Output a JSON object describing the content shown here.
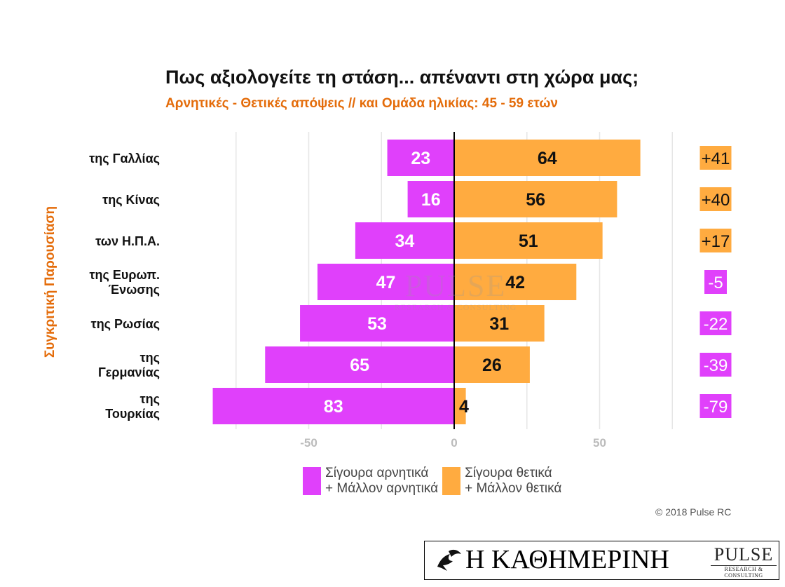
{
  "chart_data": {
    "type": "bar",
    "orientation": "horizontal-diverging",
    "title": "Πως αξιολογείτε τη στάση... απέναντι στη χώρα μας;",
    "subtitle": "Αρνητικές - Θετικές απόψεις // και Ομάδα ηλικίας: 45 - 59 ετών",
    "ylabel": "Συγκριτική Παρουσίαση",
    "categories": [
      [
        "της Γαλλίας"
      ],
      [
        "της Κίνας"
      ],
      [
        "των Η.Π.Α."
      ],
      [
        "της Ευρωπ.",
        "Ένωσης"
      ],
      [
        "της Ρωσίας"
      ],
      [
        "της",
        "Γερμανίας"
      ],
      [
        "της",
        "Τουρκίας"
      ]
    ],
    "series": [
      {
        "name": "Σίγουρα αρνητικά + Μάλλον αρνητικά",
        "color": "#e040fb",
        "values": [
          23,
          16,
          34,
          47,
          53,
          65,
          83
        ]
      },
      {
        "name": "Σίγουρα θετικά + Μάλλον θετικά",
        "color": "#ffab40",
        "values": [
          64,
          56,
          51,
          42,
          31,
          26,
          4
        ]
      }
    ],
    "net": [
      "+41",
      "+40",
      "+17",
      "-5",
      "-22",
      "-39",
      "-79"
    ],
    "xlim": [
      -83,
      75
    ],
    "xticks": [
      "-50",
      "0",
      "50"
    ],
    "xtick_values": [
      -50,
      0,
      50
    ],
    "grid": true,
    "legend_position": "bottom"
  },
  "legend": {
    "items": [
      {
        "line1": "Σίγουρα αρνητικά",
        "line2": "+ Μάλλον αρνητικά",
        "color": "#e040fb"
      },
      {
        "line1": "Σίγουρα θετικά",
        "line2": "+ Μάλλον θετικά",
        "color": "#ffab40"
      }
    ]
  },
  "watermark": {
    "main": "PULSE",
    "sub": "RESEARCH & CONSULTING"
  },
  "copyright": "© 2018 Pulse RC",
  "footer": {
    "logo": "Η ΚΑΘΗΜΕΡΙΝΗ",
    "pulse_main": "PULSE",
    "pulse_sub": "RESEARCH & CONSULTING"
  },
  "colors": {
    "negative": "#e040fb",
    "positive": "#ffab40",
    "accent": "#e46c0a"
  }
}
